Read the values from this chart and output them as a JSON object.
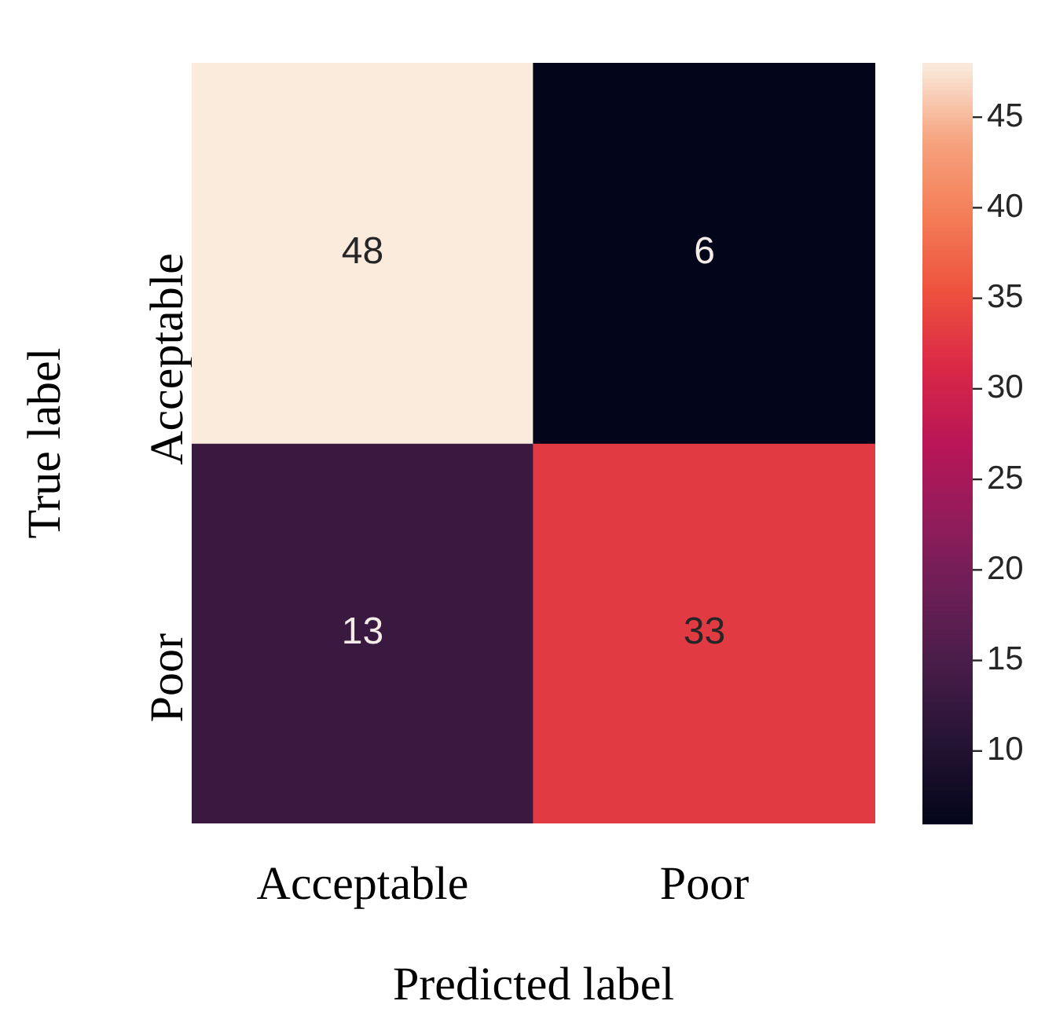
{
  "chart_data": {
    "type": "heatmap",
    "xlabel": "Predicted label",
    "ylabel": "True label",
    "categories": [
      "Acceptable",
      "Poor"
    ],
    "y_categories": [
      "Acceptable",
      "Poor"
    ],
    "cells": [
      [
        48,
        6
      ],
      [
        13,
        33
      ]
    ],
    "clim": [
      6,
      48
    ],
    "cticks": [
      10,
      15,
      20,
      25,
      30,
      35,
      40,
      45
    ],
    "data_labels": true
  }
}
